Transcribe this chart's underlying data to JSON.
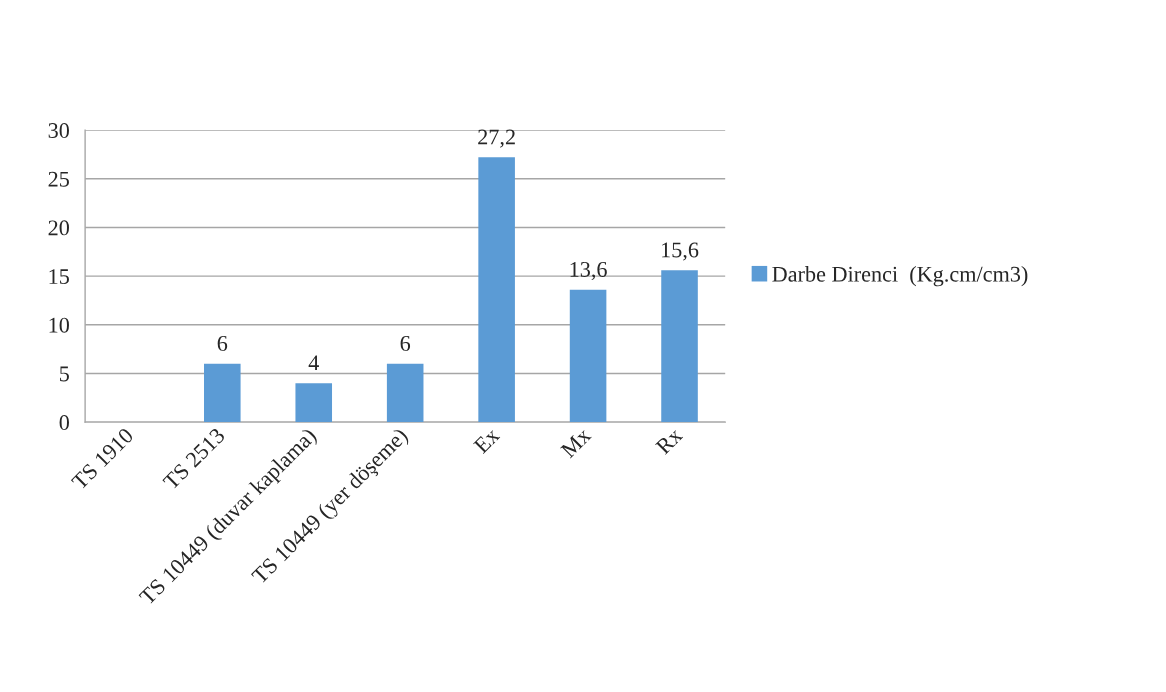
{
  "chart_data": {
    "type": "bar",
    "categories": [
      "TS 1910",
      "TS 2513",
      "TS 10449 (duvar kaplama)",
      "TS 10449 (yer döşeme)",
      "Ex",
      "Mx",
      "Rx"
    ],
    "series": [
      {
        "name": "Darbe Direnci  (Kg.cm/cm3)",
        "color": "#5b9bd5",
        "values": [
          null,
          6,
          4,
          6,
          27.2,
          13.6,
          15.6
        ],
        "value_labels": [
          null,
          "6",
          "4",
          "6",
          "27,2",
          "13,6",
          "15,6"
        ]
      }
    ],
    "ylim": [
      0,
      30
    ],
    "yticks": [
      0,
      5,
      10,
      15,
      20,
      25,
      30
    ],
    "grid": "y",
    "legend": "right"
  }
}
